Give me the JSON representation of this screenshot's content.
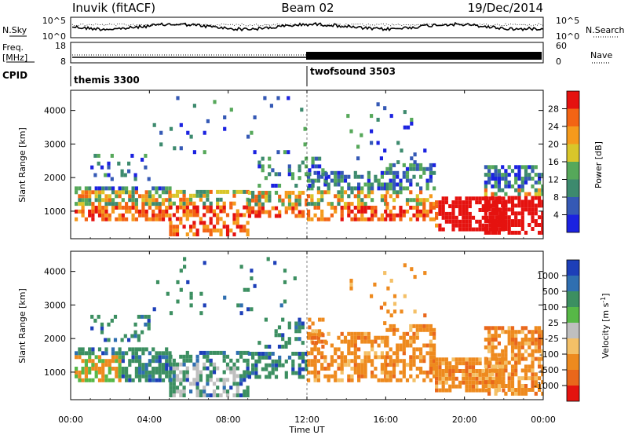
{
  "header": {
    "site": "Inuvik (fitACF)",
    "beam": "Beam 02",
    "date": "19/Dec/2014"
  },
  "noise_panel": {
    "left_label": "N.Sky",
    "right_label": "N.Search",
    "left_ticks": [
      "10^5",
      "10^0"
    ],
    "right_ticks": [
      "10^5",
      "10^0"
    ]
  },
  "freq_panel": {
    "left_label_1": "Freq.",
    "left_label_2": "[MHz]",
    "right_label": "Nave",
    "left_ticks": [
      "18",
      "8"
    ],
    "right_ticks": [
      "60",
      "0"
    ]
  },
  "cpid": {
    "label": "CPID",
    "segments": [
      {
        "name": "themis 3300",
        "start_hour": 0
      },
      {
        "name": "twofsound 3503",
        "start_hour": 12
      }
    ]
  },
  "chart_data": [
    {
      "type": "heatmap",
      "title": "",
      "xlabel": "Time UT",
      "ylabel": "Slant Range [km]",
      "x_ticks": [
        "00:00",
        "04:00",
        "08:00",
        "12:00",
        "16:00",
        "20:00",
        "00:00"
      ],
      "xlim_hours": [
        0,
        24
      ],
      "y_ticks": [
        1000,
        2000,
        3000,
        4000
      ],
      "ylim": [
        180,
        4600
      ],
      "colorbar": {
        "label": "Power [dB]",
        "ticks": [
          4,
          8,
          12,
          16,
          20,
          24,
          28
        ],
        "range": [
          0,
          32
        ],
        "colors": [
          "#1b22e0",
          "#3559b5",
          "#3d8a6e",
          "#56a85a",
          "#d9c62a",
          "#f59a1c",
          "#f36414",
          "#e5120f"
        ]
      }
    },
    {
      "type": "heatmap",
      "title": "",
      "xlabel": "Time UT",
      "ylabel": "Slant Range [km]",
      "x_ticks": [
        "00:00",
        "04:00",
        "08:00",
        "12:00",
        "16:00",
        "20:00",
        "00:00"
      ],
      "xlim_hours": [
        0,
        24
      ],
      "y_ticks": [
        1000,
        2000,
        3000,
        4000
      ],
      "ylim": [
        180,
        4600
      ],
      "colorbar": {
        "label": "Velocity [m s^-1]",
        "tick_labels": [
          "1000",
          "500",
          "100",
          "25",
          "-25",
          "-100",
          "-500",
          "-1000"
        ],
        "colors": [
          "#1d3fb8",
          "#2f6fb0",
          "#3c8f61",
          "#57b847",
          "#bfbfbf",
          "#f4c067",
          "#ee8a1e",
          "#e9671b",
          "#e4130f"
        ]
      }
    }
  ]
}
